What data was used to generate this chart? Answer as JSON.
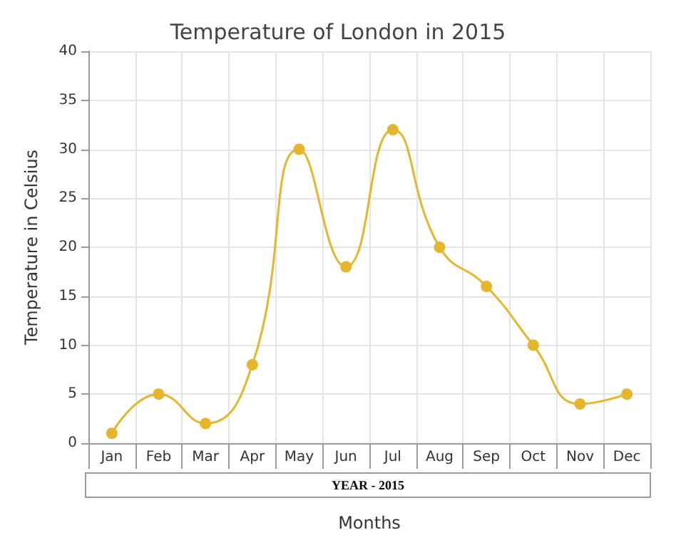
{
  "chart_data": {
    "type": "line",
    "title": "Temperature of London in 2015",
    "xlabel": "Months",
    "ylabel": "Temperature in Celsius",
    "categories": [
      "Jan",
      "Feb",
      "Mar",
      "Apr",
      "May",
      "Jun",
      "Jul",
      "Aug",
      "Sep",
      "Oct",
      "Nov",
      "Dec"
    ],
    "series": [
      {
        "color": "#e5b62c",
        "values": [
          1,
          5,
          2,
          8,
          30,
          18,
          32,
          20,
          16,
          10,
          4,
          5
        ]
      }
    ],
    "ylim": [
      0,
      40
    ],
    "yticks": [
      0,
      5,
      10,
      15,
      20,
      25,
      30,
      35,
      40
    ],
    "annotations": [
      "YEAR - 2015"
    ],
    "grid": true,
    "marker": "circle",
    "line_style": "solid"
  }
}
